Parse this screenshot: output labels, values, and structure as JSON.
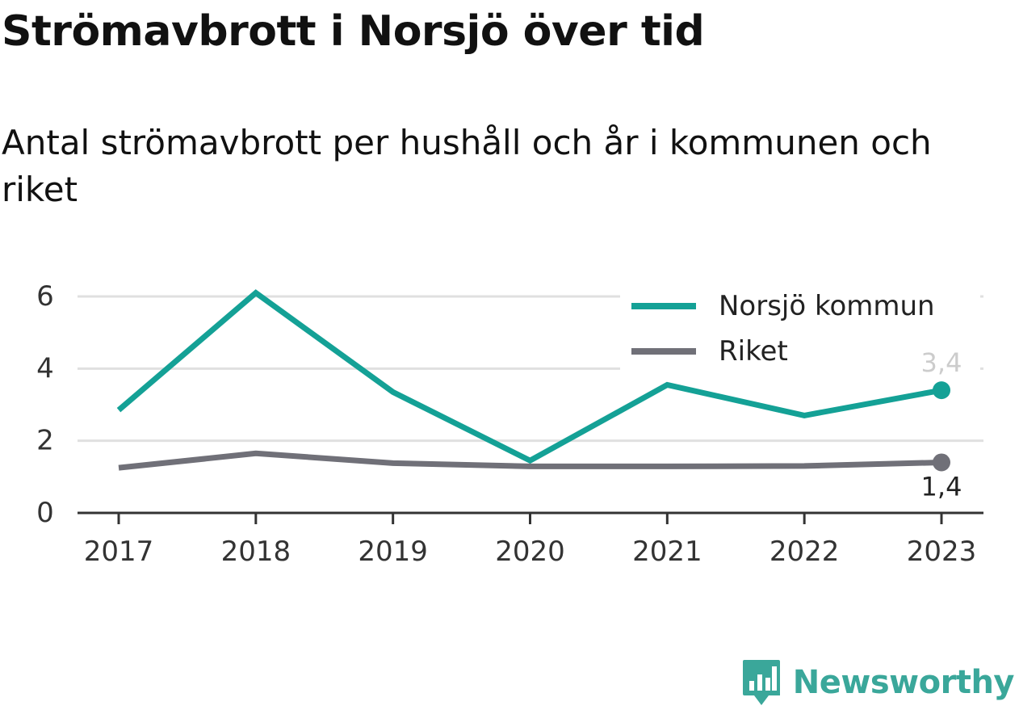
{
  "header": {
    "title": "Strömavbrott i Norsjö över tid",
    "subtitle": "Antal strömavbrott per hushåll och år i kommunen och riket"
  },
  "chart_data": {
    "type": "line",
    "title": "Strömavbrott i Norsjö över tid",
    "subtitle": "Antal strömavbrott per hushåll och år i kommunen och riket",
    "xlabel": "",
    "ylabel": "",
    "categories": [
      "2017",
      "2018",
      "2019",
      "2020",
      "2021",
      "2022",
      "2023"
    ],
    "ylim": [
      0,
      6
    ],
    "yticks": [
      0,
      2,
      4,
      6
    ],
    "grid": true,
    "legend_position": "top-right",
    "series": [
      {
        "name": "Norsjö kommun",
        "color": "#14a196",
        "values": [
          2.85,
          6.1,
          3.35,
          1.45,
          3.55,
          2.7,
          3.4
        ],
        "end_label": "3,4",
        "end_label_color": "#cccccc"
      },
      {
        "name": "Riket",
        "color": "#707078",
        "values": [
          1.25,
          1.65,
          1.38,
          1.29,
          1.29,
          1.3,
          1.4
        ],
        "end_label": "1,4",
        "end_label_color": "#222222"
      }
    ]
  },
  "brand": {
    "name": "Newsworthy",
    "color": "#3aa79a",
    "icon": "newsworthy-logo-icon"
  }
}
